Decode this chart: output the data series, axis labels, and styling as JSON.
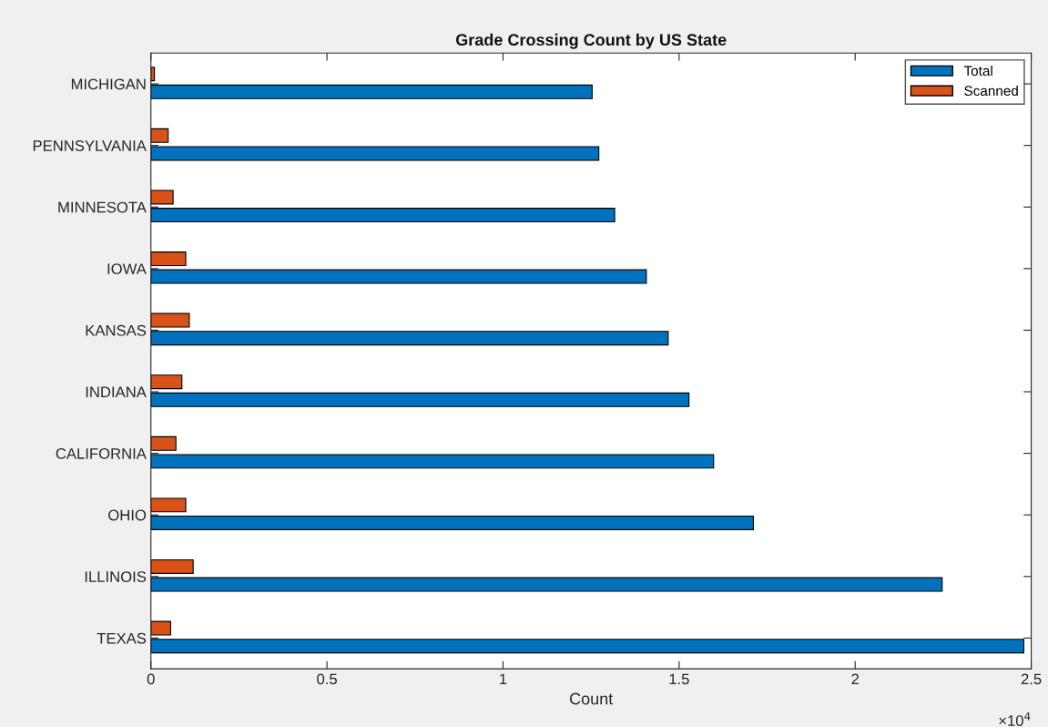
{
  "chart_data": {
    "type": "bar",
    "orientation": "horizontal",
    "title": "Grade Crossing Count by US State",
    "xlabel": "Count",
    "categories": [
      "MICHIGAN",
      "PENNSYLVANIA",
      "MINNESOTA",
      "IOWA",
      "KANSAS",
      "INDIANA",
      "CALIFORNIA",
      "OHIO",
      "ILLINOIS",
      "TEXAS"
    ],
    "series": [
      {
        "name": "Total",
        "color": "#0072bd",
        "values": [
          1.253,
          1.272,
          1.317,
          1.407,
          1.469,
          1.528,
          1.598,
          1.711,
          2.247,
          2.479
        ]
      },
      {
        "name": "Scanned",
        "color": "#d95319",
        "values": [
          0.01,
          0.049,
          0.063,
          0.099,
          0.109,
          0.088,
          0.071,
          0.099,
          0.12,
          0.056
        ]
      }
    ],
    "xlim": [
      0,
      2.5
    ],
    "xticks": [
      0,
      0.5,
      1,
      1.5,
      2,
      2.5
    ],
    "annotations": [
      "×10$^{4}$"
    ],
    "grid": false,
    "legend": "top right"
  }
}
